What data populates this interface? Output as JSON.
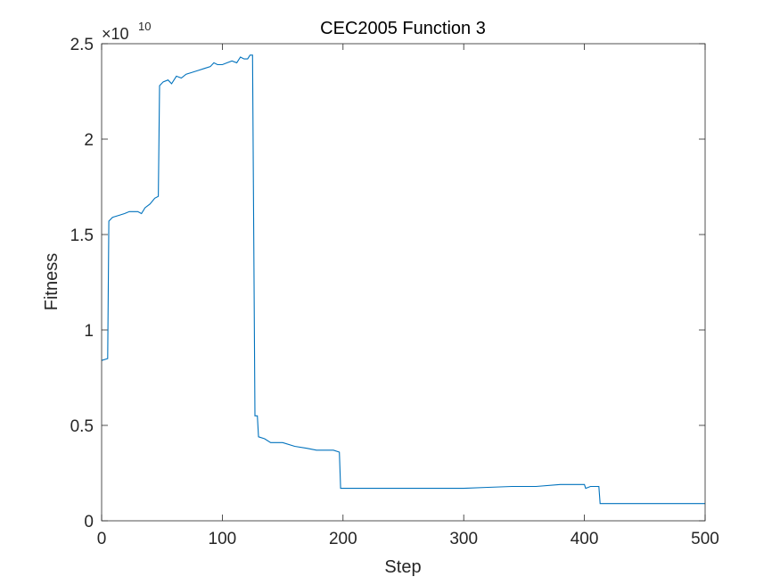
{
  "chart_data": {
    "type": "line",
    "title": "CEC2005 Function 3",
    "xlabel": "Step",
    "ylabel": "Fitness",
    "xlim": [
      0,
      500
    ],
    "ylim": [
      0,
      2.5
    ],
    "y_exponent_base": "×10",
    "y_exponent": "10",
    "x_ticks": [
      0,
      100,
      200,
      300,
      400,
      500
    ],
    "x_tick_labels": [
      "0",
      "100",
      "200",
      "300",
      "400",
      "500"
    ],
    "y_ticks": [
      0,
      0.5,
      1,
      1.5,
      2,
      2.5
    ],
    "y_tick_labels": [
      "0",
      "0.5",
      "1",
      "1.5",
      "2",
      "2.5"
    ],
    "grid": false,
    "series": [
      {
        "color": "#0072BD",
        "points": [
          [
            0,
            0.84
          ],
          [
            5,
            0.85
          ],
          [
            6,
            1.57
          ],
          [
            9,
            1.59
          ],
          [
            14,
            1.6
          ],
          [
            19,
            1.61
          ],
          [
            23,
            1.62
          ],
          [
            27,
            1.62
          ],
          [
            30,
            1.62
          ],
          [
            33,
            1.61
          ],
          [
            36,
            1.64
          ],
          [
            40,
            1.66
          ],
          [
            44,
            1.69
          ],
          [
            47,
            1.7
          ],
          [
            48,
            2.28
          ],
          [
            51,
            2.3
          ],
          [
            55,
            2.31
          ],
          [
            58,
            2.29
          ],
          [
            62,
            2.33
          ],
          [
            66,
            2.32
          ],
          [
            70,
            2.34
          ],
          [
            75,
            2.35
          ],
          [
            80,
            2.36
          ],
          [
            85,
            2.37
          ],
          [
            90,
            2.38
          ],
          [
            93,
            2.4
          ],
          [
            96,
            2.39
          ],
          [
            100,
            2.39
          ],
          [
            104,
            2.4
          ],
          [
            108,
            2.41
          ],
          [
            112,
            2.4
          ],
          [
            115,
            2.43
          ],
          [
            118,
            2.42
          ],
          [
            121,
            2.42
          ],
          [
            123,
            2.44
          ],
          [
            125,
            2.44
          ],
          [
            127,
            0.55
          ],
          [
            129,
            0.55
          ],
          [
            130,
            0.44
          ],
          [
            135,
            0.43
          ],
          [
            140,
            0.41
          ],
          [
            150,
            0.41
          ],
          [
            160,
            0.39
          ],
          [
            170,
            0.38
          ],
          [
            178,
            0.37
          ],
          [
            185,
            0.37
          ],
          [
            192,
            0.37
          ],
          [
            197,
            0.36
          ],
          [
            198,
            0.17
          ],
          [
            220,
            0.17
          ],
          [
            240,
            0.17
          ],
          [
            260,
            0.17
          ],
          [
            280,
            0.17
          ],
          [
            300,
            0.17
          ],
          [
            320,
            0.175
          ],
          [
            340,
            0.18
          ],
          [
            360,
            0.18
          ],
          [
            380,
            0.19
          ],
          [
            395,
            0.19
          ],
          [
            400,
            0.19
          ],
          [
            401,
            0.17
          ],
          [
            405,
            0.18
          ],
          [
            412,
            0.18
          ],
          [
            413,
            0.09
          ],
          [
            430,
            0.09
          ],
          [
            450,
            0.09
          ],
          [
            470,
            0.09
          ],
          [
            490,
            0.09
          ],
          [
            500,
            0.09
          ]
        ]
      }
    ]
  }
}
